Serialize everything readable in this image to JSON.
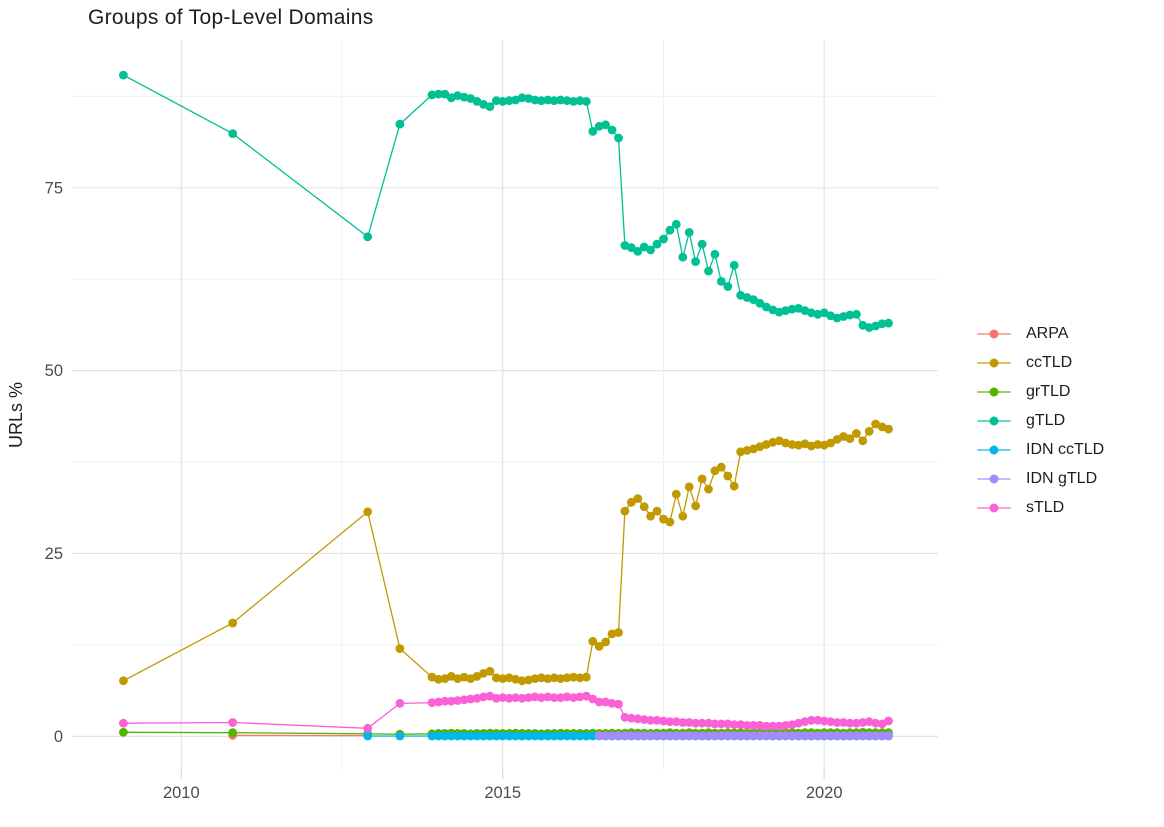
{
  "chart_data": {
    "type": "line",
    "title": "Groups of Top-Level Domains",
    "xlabel": "",
    "ylabel": "URLs %",
    "legend_position": "right",
    "grid": {
      "major_color": "#e4e4e4",
      "minor_color": "#f0f0f0",
      "tick_color": "#d6d6d6"
    },
    "colors": {
      "axis_text": "#4d4d4d",
      "title_text": "#1d1d1d"
    },
    "xlim": [
      2008.3,
      2021.77
    ],
    "ylim": [
      -4.6,
      95.2
    ],
    "x_ticks": [
      {
        "value": 2010,
        "label": "2010"
      },
      {
        "value": 2015,
        "label": "2015"
      },
      {
        "value": 2020,
        "label": "2020"
      }
    ],
    "y_ticks": [
      {
        "value": 0,
        "label": "0"
      },
      {
        "value": 25,
        "label": "25"
      },
      {
        "value": 50,
        "label": "50"
      },
      {
        "value": 75,
        "label": "75"
      }
    ],
    "x_minor": [
      2012.5,
      2017.5
    ],
    "y_minor": [
      12.5,
      37.5,
      62.5,
      87.5
    ],
    "series": [
      {
        "name": "ARPA",
        "color": "#F8766D",
        "points": [
          [
            2010.8,
            0.15
          ],
          [
            2012.9,
            0.1
          ]
        ]
      },
      {
        "name": "ccTLD",
        "color": "#C09A00",
        "points": [
          [
            2009.1,
            7.6
          ],
          [
            2010.8,
            15.5
          ],
          [
            2012.9,
            30.7
          ],
          [
            2013.4,
            12.0
          ],
          [
            2013.9,
            8.1
          ]
        ],
        "dense": {
          "start": 2014.0,
          "step": 0.1,
          "values": [
            7.8,
            7.9,
            8.2,
            7.9,
            8.1,
            7.9,
            8.2,
            8.6,
            8.9,
            8.0,
            7.9,
            8.0,
            7.8,
            7.6,
            7.7,
            7.9,
            8.0,
            7.9,
            8.0,
            7.9,
            8.0,
            8.1,
            8.0,
            8.1,
            13.0,
            12.3,
            12.9,
            14.0,
            14.2,
            30.8,
            32.0,
            32.5,
            31.4,
            30.1,
            30.8,
            29.7,
            29.3,
            33.1,
            30.1,
            34.1,
            31.5,
            35.2,
            33.8,
            36.3,
            36.8,
            35.6,
            34.2,
            38.9,
            39.1,
            39.3,
            39.6,
            39.9,
            40.2,
            40.4,
            40.1,
            39.9,
            39.8,
            40.0,
            39.7,
            39.9,
            39.8,
            40.1,
            40.6,
            41.0,
            40.7,
            41.4,
            40.4,
            41.7,
            42.7,
            42.3,
            42.0
          ]
        }
      },
      {
        "name": "grTLD",
        "color": "#53B400",
        "points": [
          [
            2009.1,
            0.55
          ],
          [
            2010.8,
            0.5
          ],
          [
            2012.9,
            0.35
          ],
          [
            2013.4,
            0.3
          ],
          [
            2013.9,
            0.35
          ]
        ],
        "dense": {
          "start": 2014.0,
          "step": 0.1,
          "values": [
            0.4,
            0.4,
            0.45,
            0.4,
            0.4,
            0.35,
            0.4,
            0.4,
            0.45,
            0.4,
            0.4,
            0.4,
            0.45,
            0.4,
            0.4,
            0.4,
            0.35,
            0.4,
            0.4,
            0.45,
            0.4,
            0.4,
            0.4,
            0.4,
            0.45,
            0.4,
            0.4,
            0.45,
            0.4,
            0.45,
            0.5,
            0.45,
            0.45,
            0.4,
            0.45,
            0.45,
            0.5,
            0.45,
            0.45,
            0.5,
            0.45,
            0.45,
            0.5,
            0.45,
            0.45,
            0.5,
            0.45,
            0.5,
            0.45,
            0.5,
            0.5,
            0.45,
            0.5,
            0.45,
            0.5,
            0.5,
            0.45,
            0.5,
            0.5,
            0.45,
            0.5,
            0.5,
            0.5,
            0.45,
            0.5,
            0.5,
            0.55,
            0.5,
            0.5,
            0.5,
            0.5
          ]
        }
      },
      {
        "name": "gTLD",
        "color": "#00C094",
        "points": [
          [
            2009.1,
            90.4
          ],
          [
            2010.8,
            82.4
          ],
          [
            2012.9,
            68.3
          ],
          [
            2013.4,
            83.7
          ],
          [
            2013.9,
            87.7
          ]
        ],
        "dense": {
          "start": 2014.0,
          "step": 0.1,
          "values": [
            87.8,
            87.8,
            87.3,
            87.6,
            87.4,
            87.2,
            86.8,
            86.4,
            86.1,
            86.9,
            86.8,
            86.9,
            87.0,
            87.3,
            87.2,
            87.0,
            86.9,
            87.0,
            86.9,
            87.0,
            86.9,
            86.8,
            86.9,
            86.8,
            82.7,
            83.4,
            83.6,
            82.9,
            81.8,
            67.1,
            66.8,
            66.3,
            66.9,
            66.5,
            67.3,
            68.0,
            69.2,
            70.0,
            65.5,
            68.9,
            64.9,
            67.3,
            63.6,
            65.9,
            62.2,
            61.5,
            64.4,
            60.3,
            60.0,
            59.7,
            59.2,
            58.7,
            58.3,
            58.0,
            58.2,
            58.4,
            58.5,
            58.2,
            57.9,
            57.7,
            57.9,
            57.5,
            57.2,
            57.4,
            57.6,
            57.7,
            56.2,
            55.9,
            56.1,
            56.4,
            56.5
          ]
        }
      },
      {
        "name": "IDN ccTLD",
        "color": "#00B6EB",
        "points": [
          [
            2012.9,
            0.05
          ],
          [
            2013.4,
            0.05
          ],
          [
            2013.9,
            0.05
          ]
        ],
        "dense": {
          "start": 2014.0,
          "step": 0.1,
          "count": 71,
          "constant": 0.05
        }
      },
      {
        "name": "IDN gTLD",
        "color": "#A58AFF",
        "points": [],
        "dense": {
          "start": 2016.5,
          "step": 0.1,
          "count": 46,
          "constant": 0.1
        }
      },
      {
        "name": "sTLD",
        "color": "#FB61D7",
        "points": [
          [
            2009.1,
            1.8
          ],
          [
            2010.8,
            1.9
          ],
          [
            2012.9,
            1.1
          ],
          [
            2013.4,
            4.5
          ],
          [
            2013.9,
            4.6
          ]
        ],
        "dense": {
          "start": 2014.0,
          "step": 0.1,
          "values": [
            4.7,
            4.8,
            4.8,
            4.9,
            5.0,
            5.1,
            5.2,
            5.4,
            5.5,
            5.2,
            5.3,
            5.2,
            5.3,
            5.2,
            5.3,
            5.4,
            5.3,
            5.4,
            5.3,
            5.3,
            5.4,
            5.3,
            5.4,
            5.5,
            5.1,
            4.7,
            4.7,
            4.5,
            4.4,
            2.6,
            2.5,
            2.4,
            2.3,
            2.2,
            2.2,
            2.1,
            2.0,
            2.0,
            1.9,
            1.9,
            1.8,
            1.8,
            1.8,
            1.7,
            1.7,
            1.7,
            1.6,
            1.6,
            1.5,
            1.5,
            1.5,
            1.4,
            1.4,
            1.4,
            1.5,
            1.6,
            1.8,
            2.0,
            2.2,
            2.2,
            2.1,
            2.0,
            1.9,
            1.9,
            1.8,
            1.8,
            1.9,
            2.0,
            1.8,
            1.7,
            2.1
          ]
        }
      }
    ]
  }
}
